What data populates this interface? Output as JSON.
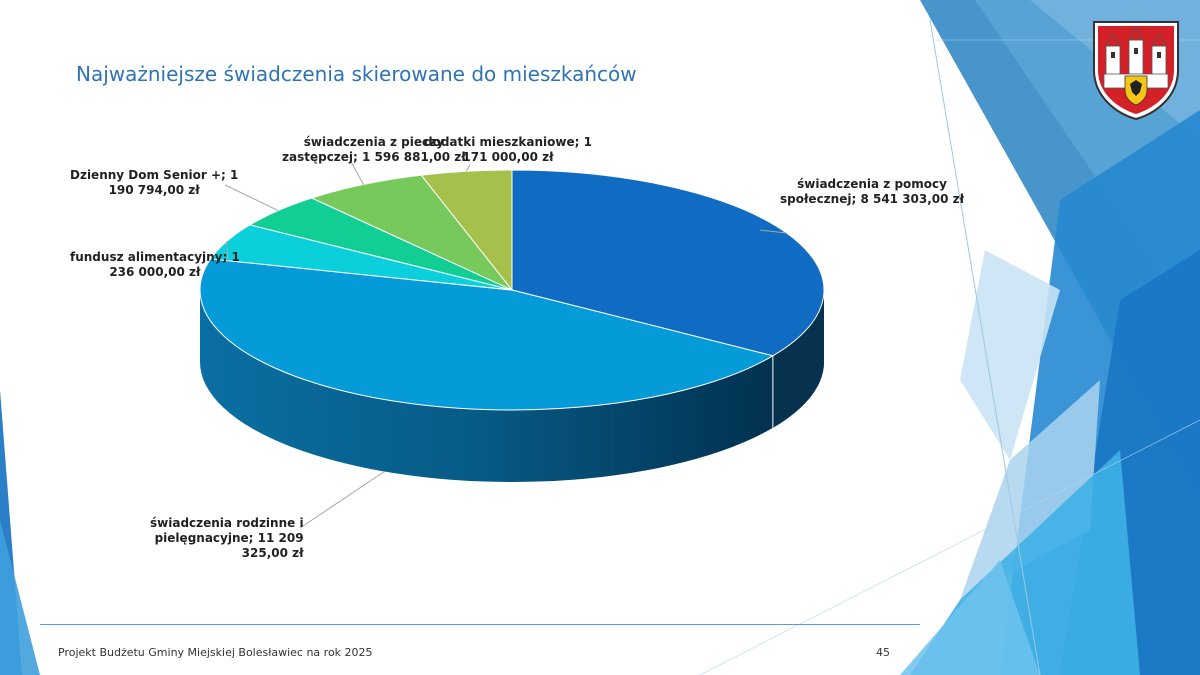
{
  "slide": {
    "title": "Najważniejsze świadczenia skierowane do mieszkańców",
    "footer": "Projekt Budżetu Gminy Miejskiej Bolesławiec na rok 2025",
    "page_number": "45"
  },
  "colors": {
    "title": "#2e74b5",
    "slices": [
      "#0f6cc2",
      "#049bd8",
      "#0ccfdc",
      "#11cf94",
      "#78c95c",
      "#a6c04c"
    ]
  },
  "chart_data": {
    "type": "pie",
    "title": "",
    "unit": "zł",
    "slices": [
      {
        "name": "świadczenia z pomocy społecznej",
        "value": 8541303.0,
        "label_lines": [
          "świadczenia z pomocy",
          "społecznej; 8 541 303,00 zł"
        ]
      },
      {
        "name": "świadczenia rodzinne i pielęgnacyjne",
        "value": 11209325.0,
        "label_lines": [
          "świadczenia rodzinne i",
          "pielęgnacyjne; 11 209",
          "325,00 zł"
        ]
      },
      {
        "name": "fundusz alimentacyjny",
        "value": 1236000.0,
        "label_lines": [
          "fundusz alimentacyjny; 1",
          "236 000,00 zł"
        ]
      },
      {
        "name": "Dzienny Dom Senior +",
        "value": 1190794.0,
        "label_lines": [
          "Dzienny Dom Senior +; 1",
          "190 794,00 zł"
        ]
      },
      {
        "name": "świadczenia z pieczy zastępczej",
        "value": 1596881.0,
        "label_lines": [
          "świadczenia z pieczy",
          "zastępczej; 1 596 881,00 zł"
        ]
      },
      {
        "name": "dodatki mieszkaniowe",
        "value": 1171000.0,
        "label_lines": [
          "dodatki mieszkaniowe; 1",
          "171 000,00 zł"
        ]
      }
    ]
  }
}
